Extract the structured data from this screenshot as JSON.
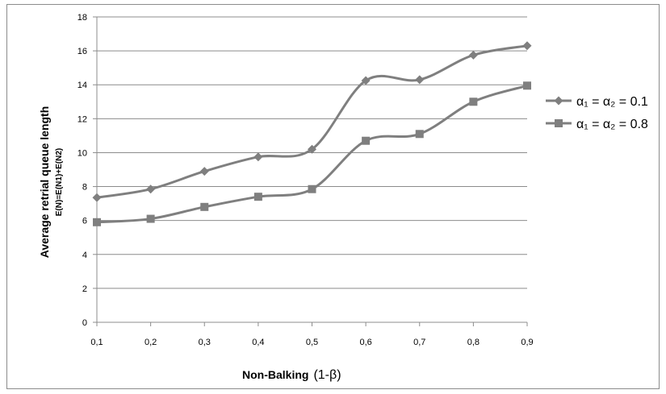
{
  "chart_data": {
    "type": "line",
    "x": [
      "0,1",
      "0,2",
      "0,3",
      "0,4",
      "0,5",
      "0,6",
      "0,7",
      "0,8",
      "0,9"
    ],
    "x_values": [
      0.1,
      0.2,
      0.3,
      0.4,
      0.5,
      0.6,
      0.7,
      0.8,
      0.9
    ],
    "yticks": [
      "0",
      "2",
      "4",
      "6",
      "8",
      "10",
      "12",
      "14",
      "16",
      "18"
    ],
    "ylim": [
      0,
      18
    ],
    "ylabel": "Average retrial queue length",
    "ylabel_sub": "E(N)=E(N1)+E(N2)",
    "xlabel": "Non-Balking",
    "xlabel_suffix": "(1-β)",
    "grid": "horizontal",
    "legend_position": "right",
    "series": [
      {
        "name": "α₁ = α₂ = 0.1",
        "marker": "diamond",
        "color": "#7f7f7f",
        "values": [
          7.35,
          7.85,
          8.9,
          9.75,
          10.2,
          14.25,
          14.3,
          15.75,
          16.3
        ]
      },
      {
        "name": "α₁ = α₂ = 0.8",
        "marker": "square",
        "color": "#7f7f7f",
        "values": [
          5.9,
          6.1,
          6.8,
          7.4,
          7.85,
          10.7,
          11.1,
          13.0,
          13.95
        ]
      }
    ]
  }
}
